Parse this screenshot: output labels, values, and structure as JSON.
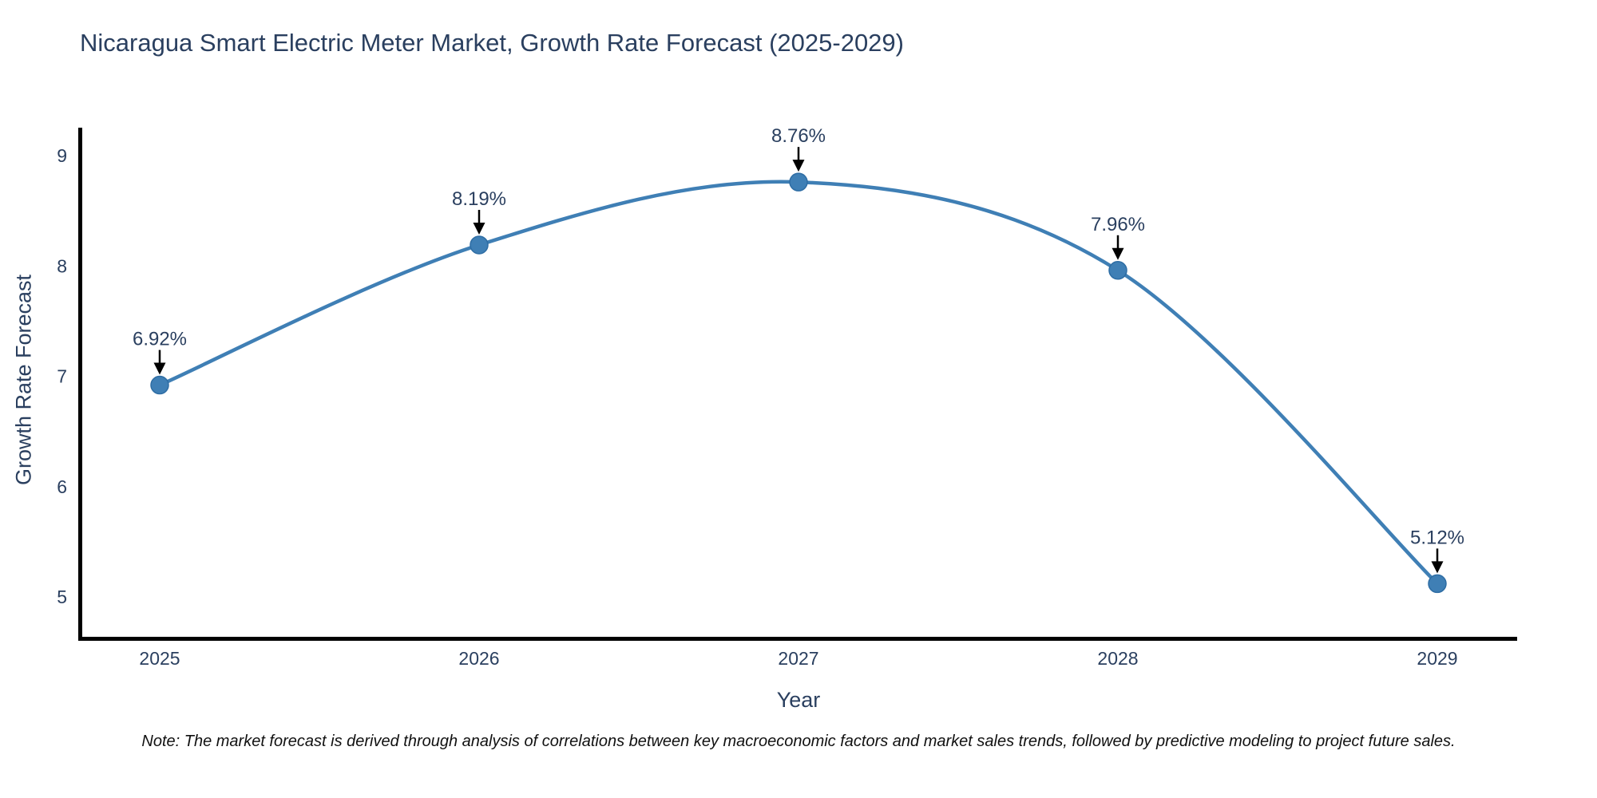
{
  "chart_data": {
    "type": "line",
    "title": "Nicaragua Smart Electric Meter Market, Growth Rate Forecast (2025-2029)",
    "x": [
      2025,
      2026,
      2027,
      2028,
      2029
    ],
    "series": [
      {
        "name": "Growth Rate Forecast",
        "values": [
          6.92,
          8.19,
          8.76,
          7.96,
          5.12
        ]
      }
    ],
    "point_labels": [
      "6.92%",
      "8.19%",
      "8.76%",
      "7.96%",
      "5.12%"
    ],
    "xlabel": "Year",
    "ylabel": "Growth Rate Forecast",
    "yticks": [
      9,
      8,
      7,
      6,
      5
    ],
    "xticks": [
      "2025",
      "2026",
      "2027",
      "2028",
      "2029"
    ],
    "ylim": [
      4.6,
      9.25
    ],
    "grid": false,
    "legend": "none",
    "line_shape": "spline",
    "annotations_have_arrows": true,
    "colors": {
      "line": "#3f7fb5",
      "marker": "#3f7fb5",
      "marker_edge": "#2e6da4",
      "axis": "#000000",
      "text": "#2a3f5f",
      "annotation_text": "#2a3f5f",
      "annotation_arrow": "#000000",
      "background": "#ffffff"
    }
  },
  "footer": {
    "note": "Note: The market forecast is derived through analysis of correlations between key macroeconomic factors and market sales trends, followed by predictive modeling to project future sales."
  }
}
